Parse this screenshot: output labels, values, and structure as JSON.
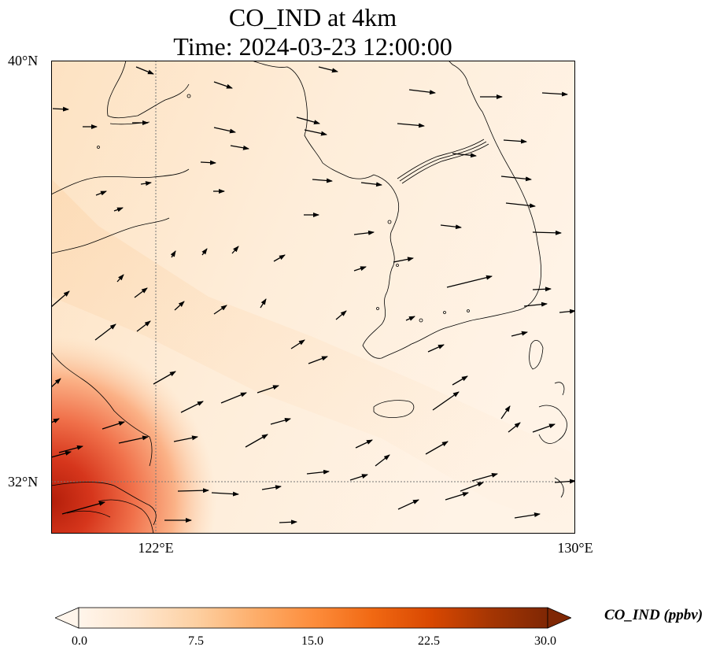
{
  "title": {
    "line1": "CO_IND at 4km",
    "line2": "Time: 2024-03-23 12:00:00"
  },
  "axes": {
    "lat_labels": [
      "40°N",
      "32°N"
    ],
    "lon_labels": [
      "122°E",
      "130°E"
    ]
  },
  "colorbar": {
    "label": "CO_IND (ppbv)",
    "ticks": [
      "0.0",
      "7.5",
      "15.0",
      "22.5",
      "30.0"
    ],
    "min": 0,
    "max": 30,
    "colormap": [
      "#fff5eb",
      "#fee6ce",
      "#fdd0a2",
      "#fdae6b",
      "#fd8d3c",
      "#f16913",
      "#d94801",
      "#a63603",
      "#7f2704"
    ],
    "extend": "both"
  },
  "colors": {
    "coastline": "#000000",
    "gridline": "#777777",
    "wind_arrow": "#000000"
  }
}
